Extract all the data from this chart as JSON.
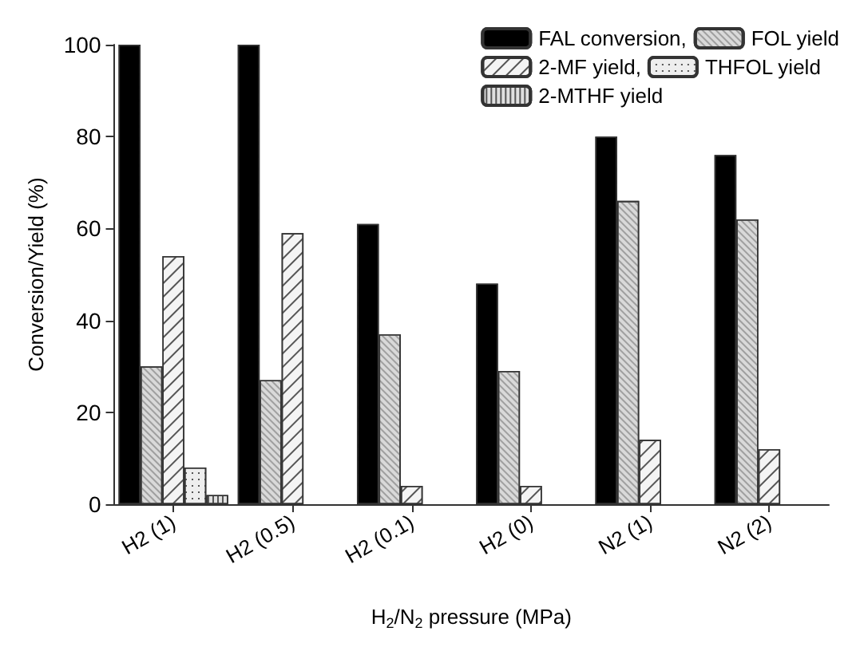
{
  "chart_data": {
    "type": "bar",
    "ylabel": "Conversion/Yield (%)",
    "xlabel": "H$_{2}$/N$_{2}$ pressure (MPa)",
    "categories": [
      "H2 (1)",
      "H2 (0.5)",
      "H2 (0.1)",
      "H2 (0)",
      "N2 (1)",
      "N2 (2)"
    ],
    "series": [
      {
        "name": "FAL conversion,",
        "color": "#000000",
        "values": [
          100,
          100,
          61,
          48,
          80,
          76
        ]
      },
      {
        "name": "FOL yield",
        "color": "#d9d9d9",
        "values": [
          30,
          27,
          37,
          29,
          66,
          62
        ]
      },
      {
        "name": "2-MF yield,",
        "color": "#f4f4f4",
        "values": [
          54,
          59,
          4,
          4,
          14,
          12
        ]
      },
      {
        "name": "THFOL yield",
        "color": "#eeeeee",
        "values": [
          8,
          null,
          null,
          null,
          null,
          null
        ]
      },
      {
        "name": "2-MTHF yield",
        "color": "#e0e0e0",
        "values": [
          2,
          null,
          null,
          null,
          null,
          null
        ]
      }
    ],
    "ylim": [
      0,
      100
    ],
    "yticks": [
      0,
      20,
      40,
      60,
      80,
      100
    ],
    "grid": false,
    "legend": "top right"
  }
}
